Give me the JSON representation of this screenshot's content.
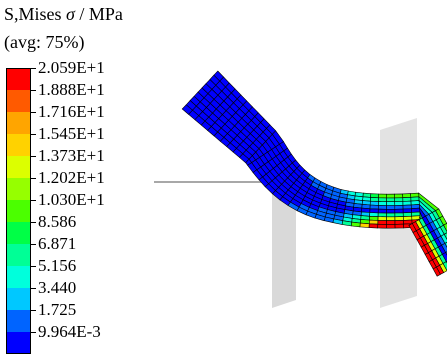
{
  "title": {
    "line1_prefix": "S,Mises ",
    "symbol": "σ",
    "line1_suffix": " / MPa",
    "line2": "(avg: 75%)"
  },
  "legend": {
    "labels": [
      "2.059E+1",
      "1.888E+1",
      "1.716E+1",
      "1.545E+1",
      "1.373E+1",
      "1.202E+1",
      "1.030E+1",
      "8.586",
      "6.871",
      "5.156",
      "3.440",
      "1.725",
      "9.964E-3"
    ],
    "colors": [
      "#ff0000",
      "#ff5a00",
      "#ffa500",
      "#ffd200",
      "#dcff00",
      "#96ff00",
      "#4bff00",
      "#00ff46",
      "#00ff96",
      "#00ffdc",
      "#00c8ff",
      "#0064ff",
      "#0000ff"
    ]
  },
  "model": {
    "mesh_edge_color": "#000000",
    "tool_color": "#d6d6d6"
  }
}
